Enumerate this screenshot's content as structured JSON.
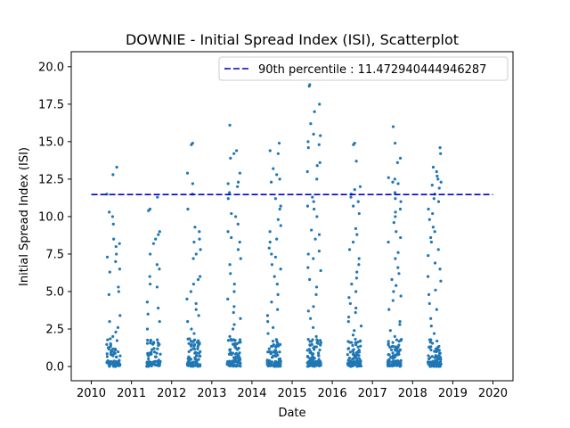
{
  "chart_data": {
    "type": "scatter",
    "title": "DOWNIE - Initial Spread Index (ISI), Scatterplot",
    "xlabel": "Date",
    "ylabel": "Initial Spread Index (ISI)",
    "xlim": [
      2009.5,
      2020.5
    ],
    "ylim": [
      -0.95,
      21.0
    ],
    "x_ticks": [
      2010,
      2011,
      2012,
      2013,
      2014,
      2015,
      2016,
      2017,
      2018,
      2019,
      2020
    ],
    "x_tick_labels": [
      "2010",
      "2011",
      "2012",
      "2013",
      "2014",
      "2015",
      "2016",
      "2017",
      "2018",
      "2019",
      "2020"
    ],
    "y_ticks": [
      0.0,
      2.5,
      5.0,
      7.5,
      10.0,
      12.5,
      15.0,
      17.5,
      20.0
    ],
    "y_tick_labels": [
      "0.0",
      "2.5",
      "5.0",
      "7.5",
      "10.0",
      "12.5",
      "15.0",
      "17.5",
      "20.0"
    ],
    "grid": false,
    "legend_position": "top-right",
    "point_color": "#1f77b4",
    "reference_line": {
      "label": "90th percentile : 11.472940444946287",
      "y": 11.472940444946287,
      "x_range": [
        2010,
        2020
      ],
      "color": "#0000cc",
      "style": "dashed"
    },
    "season_clusters": [
      {
        "year": 2010,
        "x_range": [
          2010.38,
          2010.72
        ],
        "n_points": 100,
        "max_isi": 13.3,
        "high_values": [
          13.3,
          12.8,
          11.5,
          10.3,
          10.0,
          9.5,
          8.5,
          8.2,
          8.0,
          7.5,
          7.3,
          7.0,
          6.5,
          6.3,
          5.3,
          5.0,
          4.8,
          3.4,
          3.0,
          2.6,
          2.3,
          2.0
        ]
      },
      {
        "year": 2011,
        "x_range": [
          2011.38,
          2011.72
        ],
        "n_points": 90,
        "max_isi": 11.3,
        "high_values": [
          11.3,
          10.5,
          10.4,
          9.0,
          8.8,
          8.5,
          8.2,
          7.5,
          6.8,
          6.5,
          6.0,
          5.5,
          5.3,
          4.3,
          3.9,
          3.5,
          3.0,
          2.5
        ]
      },
      {
        "year": 2012,
        "x_range": [
          2012.38,
          2012.72
        ],
        "n_points": 110,
        "max_isi": 14.9,
        "high_values": [
          14.9,
          14.8,
          12.9,
          12.2,
          11.5,
          10.5,
          9.3,
          9.0,
          8.5,
          8.3,
          7.8,
          7.5,
          7.2,
          6.0,
          5.8,
          5.5,
          5.0,
          4.5,
          4.2,
          3.8,
          3.4,
          3.0,
          2.5,
          2.2
        ]
      },
      {
        "year": 2013,
        "x_range": [
          2013.38,
          2013.72
        ],
        "n_points": 120,
        "max_isi": 16.1,
        "high_values": [
          16.1,
          14.4,
          14.2,
          13.9,
          12.9,
          12.3,
          12.2,
          12.0,
          11.6,
          11.2,
          10.2,
          10.0,
          9.5,
          9.0,
          8.6,
          8.3,
          7.8,
          7.2,
          6.8,
          6.2,
          5.5,
          5.0,
          4.5,
          4.0,
          3.6,
          3.2,
          2.8,
          2.5,
          2.0
        ]
      },
      {
        "year": 2014,
        "x_range": [
          2014.38,
          2014.72
        ],
        "n_points": 125,
        "max_isi": 14.9,
        "high_values": [
          14.9,
          14.4,
          14.2,
          13.2,
          12.8,
          12.5,
          12.3,
          11.2,
          10.7,
          10.5,
          9.8,
          9.4,
          9.0,
          8.5,
          8.3,
          7.9,
          7.5,
          7.3,
          6.8,
          6.5,
          6.0,
          5.5,
          4.8,
          4.3,
          3.8,
          3.4,
          3.0,
          2.6,
          2.2
        ]
      },
      {
        "year": 2015,
        "x_range": [
          2015.38,
          2015.72
        ],
        "n_points": 130,
        "max_isi": 18.8,
        "high_values": [
          18.8,
          18.7,
          17.5,
          17.0,
          16.2,
          15.5,
          15.4,
          15.0,
          14.8,
          14.6,
          13.6,
          13.4,
          13.0,
          12.5,
          11.3,
          11.0,
          10.7,
          10.5,
          10.0,
          9.1,
          8.8,
          8.5,
          7.7,
          7.5,
          7.2,
          6.6,
          6.4,
          5.8,
          5.3,
          4.8,
          4.0,
          3.7,
          3.2,
          2.6,
          2.0
        ]
      },
      {
        "year": 2016,
        "x_range": [
          2016.38,
          2016.72
        ],
        "n_points": 125,
        "max_isi": 14.9,
        "high_values": [
          14.9,
          14.8,
          13.7,
          12.0,
          11.8,
          11.5,
          11.3,
          11.0,
          10.7,
          10.2,
          9.2,
          8.8,
          8.3,
          7.8,
          7.2,
          6.8,
          6.3,
          5.9,
          5.5,
          5.0,
          4.6,
          4.2,
          3.9,
          3.6,
          3.3,
          3.0,
          2.7,
          2.4,
          2.1
        ]
      },
      {
        "year": 2017,
        "x_range": [
          2017.38,
          2017.72
        ],
        "n_points": 130,
        "max_isi": 16.0,
        "high_values": [
          16.0,
          14.9,
          13.9,
          13.6,
          12.6,
          12.5,
          12.3,
          12.2,
          11.6,
          11.2,
          11.0,
          10.5,
          10.3,
          10.0,
          9.6,
          9.0,
          8.6,
          8.3,
          7.6,
          7.2,
          6.6,
          6.2,
          5.8,
          5.4,
          5.0,
          4.7,
          4.4,
          3.8,
          3.0,
          2.8,
          2.4,
          2.0
        ]
      },
      {
        "year": 2018,
        "x_range": [
          2018.38,
          2018.72
        ],
        "n_points": 120,
        "max_isi": 14.6,
        "high_values": [
          14.6,
          14.2,
          13.3,
          13.0,
          12.7,
          12.5,
          12.3,
          12.1,
          11.9,
          11.5,
          11.2,
          11.0,
          10.5,
          10.2,
          9.8,
          9.3,
          9.0,
          8.6,
          8.3,
          7.8,
          7.4,
          6.9,
          6.5,
          6.0,
          5.7,
          5.1,
          4.8,
          4.2,
          3.8,
          3.2,
          2.7,
          2.2
        ]
      }
    ]
  }
}
